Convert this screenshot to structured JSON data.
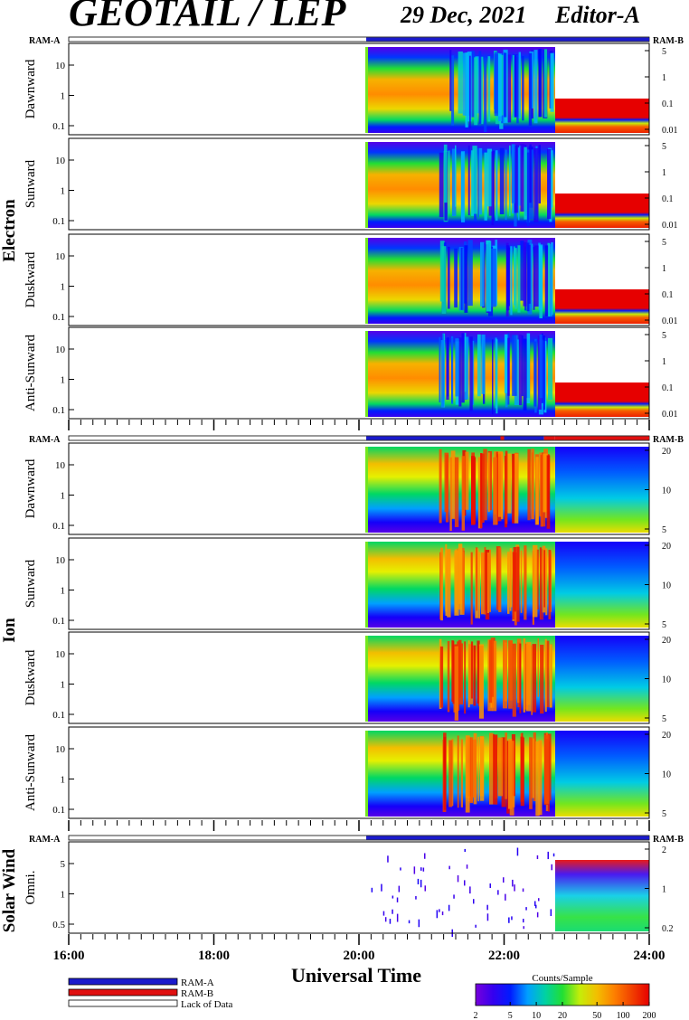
{
  "header": {
    "title": "GEOTAIL / LEP",
    "date": "29 Dec, 2021",
    "editor": "Editor-A"
  },
  "chart_data": {
    "type": "heatmap",
    "xlabel": "Universal Time",
    "x_ticks": [
      "16:00",
      "18:00",
      "20:00",
      "22:00",
      "24:00"
    ],
    "xlim_hours": [
      16,
      24
    ],
    "data_start_hour": 20.1,
    "mode_bar_labels": {
      "left": "RAM-A",
      "right": "RAM-B"
    },
    "groups": [
      {
        "name": "Electron",
        "left_ticks": [
          "10",
          "1",
          "0.1"
        ],
        "right_ticks": [
          "5",
          "1",
          "0.1",
          "0.01"
        ],
        "panels": [
          "Dawnward",
          "Sunward",
          "Duskward",
          "Anti-Sunward"
        ]
      },
      {
        "name": "Ion",
        "left_ticks": [
          "10",
          "1",
          "0.1"
        ],
        "right_ticks": [
          "20",
          "10",
          "5"
        ],
        "panels": [
          "Dawnward",
          "Sunward",
          "Duskward",
          "Anti-Sunward"
        ]
      },
      {
        "name": "Solar Wind",
        "left_ticks": [
          "5",
          "1",
          "0.5"
        ],
        "right_ticks": [
          "2",
          "1",
          "0.2"
        ],
        "panels": [
          "Omni."
        ]
      }
    ],
    "legend": [
      {
        "label": "RAM-A",
        "color": "#1a1acc"
      },
      {
        "label": "RAM-B",
        "color": "#e01010"
      },
      {
        "label": "Lack of Data",
        "color": "#ffffff"
      }
    ],
    "colorbar": {
      "title": "Counts/Sample",
      "ticks": [
        "2",
        "5",
        "10",
        "20",
        "50",
        "100",
        "200"
      ],
      "min": 2,
      "max": 200,
      "scale": "log"
    }
  }
}
